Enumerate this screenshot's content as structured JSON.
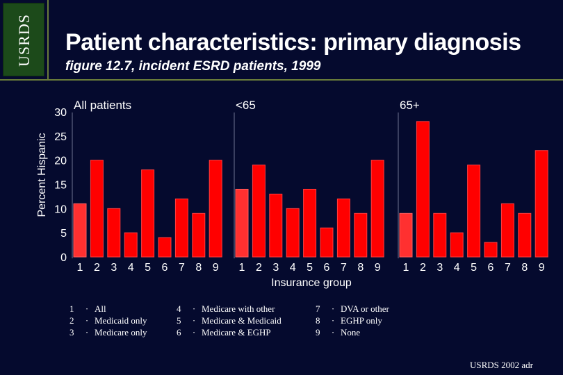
{
  "logo": {
    "text": "USRDS"
  },
  "header": {
    "title": "Patient characteristics: primary diagnosis",
    "subtitle": "figure 12.7, incident ESRD patients, 1999"
  },
  "colors": {
    "background": "#050a2e",
    "bar": "#ff0000",
    "bar_first": "#ff3030",
    "logo_green": "#1c4a1a"
  },
  "chart_data": {
    "type": "bar",
    "ylabel": "Percent Hispanic",
    "xlabel": "Insurance group",
    "ylim": [
      0,
      30
    ],
    "yticks": [
      0,
      5,
      10,
      15,
      20,
      25,
      30
    ],
    "categories": [
      "1",
      "2",
      "3",
      "4",
      "5",
      "6",
      "7",
      "8",
      "9"
    ],
    "panels": [
      {
        "title": "All patients",
        "values": [
          11,
          20,
          10,
          5,
          18,
          4,
          12,
          9,
          20
        ]
      },
      {
        "title": "<65",
        "values": [
          14,
          19,
          13,
          10,
          14,
          6,
          12,
          9,
          20
        ]
      },
      {
        "title": "65+",
        "values": [
          9,
          28,
          9,
          5,
          19,
          3,
          11,
          9,
          22
        ]
      }
    ]
  },
  "legend": {
    "columns": [
      [
        {
          "num": "1",
          "label": "All"
        },
        {
          "num": "2",
          "label": "Medicaid only"
        },
        {
          "num": "3",
          "label": "Medicare only"
        }
      ],
      [
        {
          "num": "4",
          "label": "Medicare with other"
        },
        {
          "num": "5",
          "label": "Medicare & Medicaid"
        },
        {
          "num": "6",
          "label": "Medicare & EGHP"
        }
      ],
      [
        {
          "num": "7",
          "label": "DVA or other"
        },
        {
          "num": "8",
          "label": "EGHP only"
        },
        {
          "num": "9",
          "label": "None"
        }
      ]
    ],
    "bullet": "·"
  },
  "footer": {
    "text": "USRDS 2002 adr"
  }
}
